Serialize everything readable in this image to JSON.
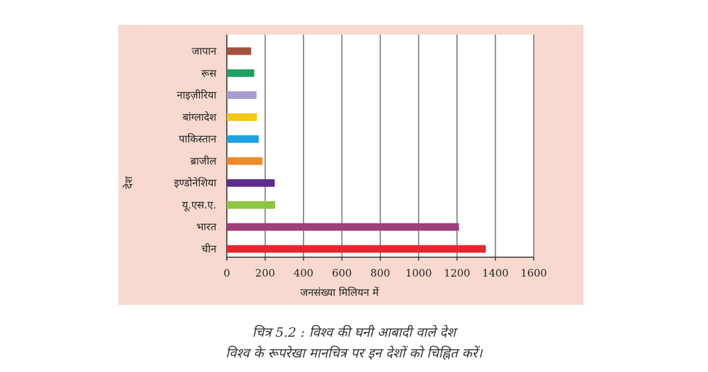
{
  "chart_data": {
    "type": "bar",
    "orientation": "horizontal",
    "categories": [
      "जापान",
      "रूस",
      "नाइज़ीरिया",
      "बांग्लादेश",
      "पाकिस्तान",
      "ब्राजील",
      "इण्डोनेशिया",
      "यू.एस.ए.",
      "भारत",
      "चीन"
    ],
    "values": [
      127,
      143,
      155,
      157,
      167,
      186,
      250,
      252,
      1210,
      1350
    ],
    "colors": [
      "#a0523d",
      "#1aa260",
      "#a89bd1",
      "#f5c518",
      "#1da1e0",
      "#f08a24",
      "#5e2f8a",
      "#8cc63f",
      "#a0407a",
      "#e4262d"
    ],
    "xlim": [
      0,
      1600
    ],
    "xticks": [
      0,
      200,
      400,
      600,
      800,
      1000,
      1200,
      1400,
      1600
    ],
    "xlabel": "जनसंख्या मिलियन में",
    "ylabel": "देश",
    "grid": "vertical"
  },
  "caption": {
    "line1": "चित्र 5.2 : विश्व की घनी आबादी वाले देश",
    "line2": "विश्व के रूपरेखा मानचित्र पर इन देशों को चिह्नित करें।"
  }
}
